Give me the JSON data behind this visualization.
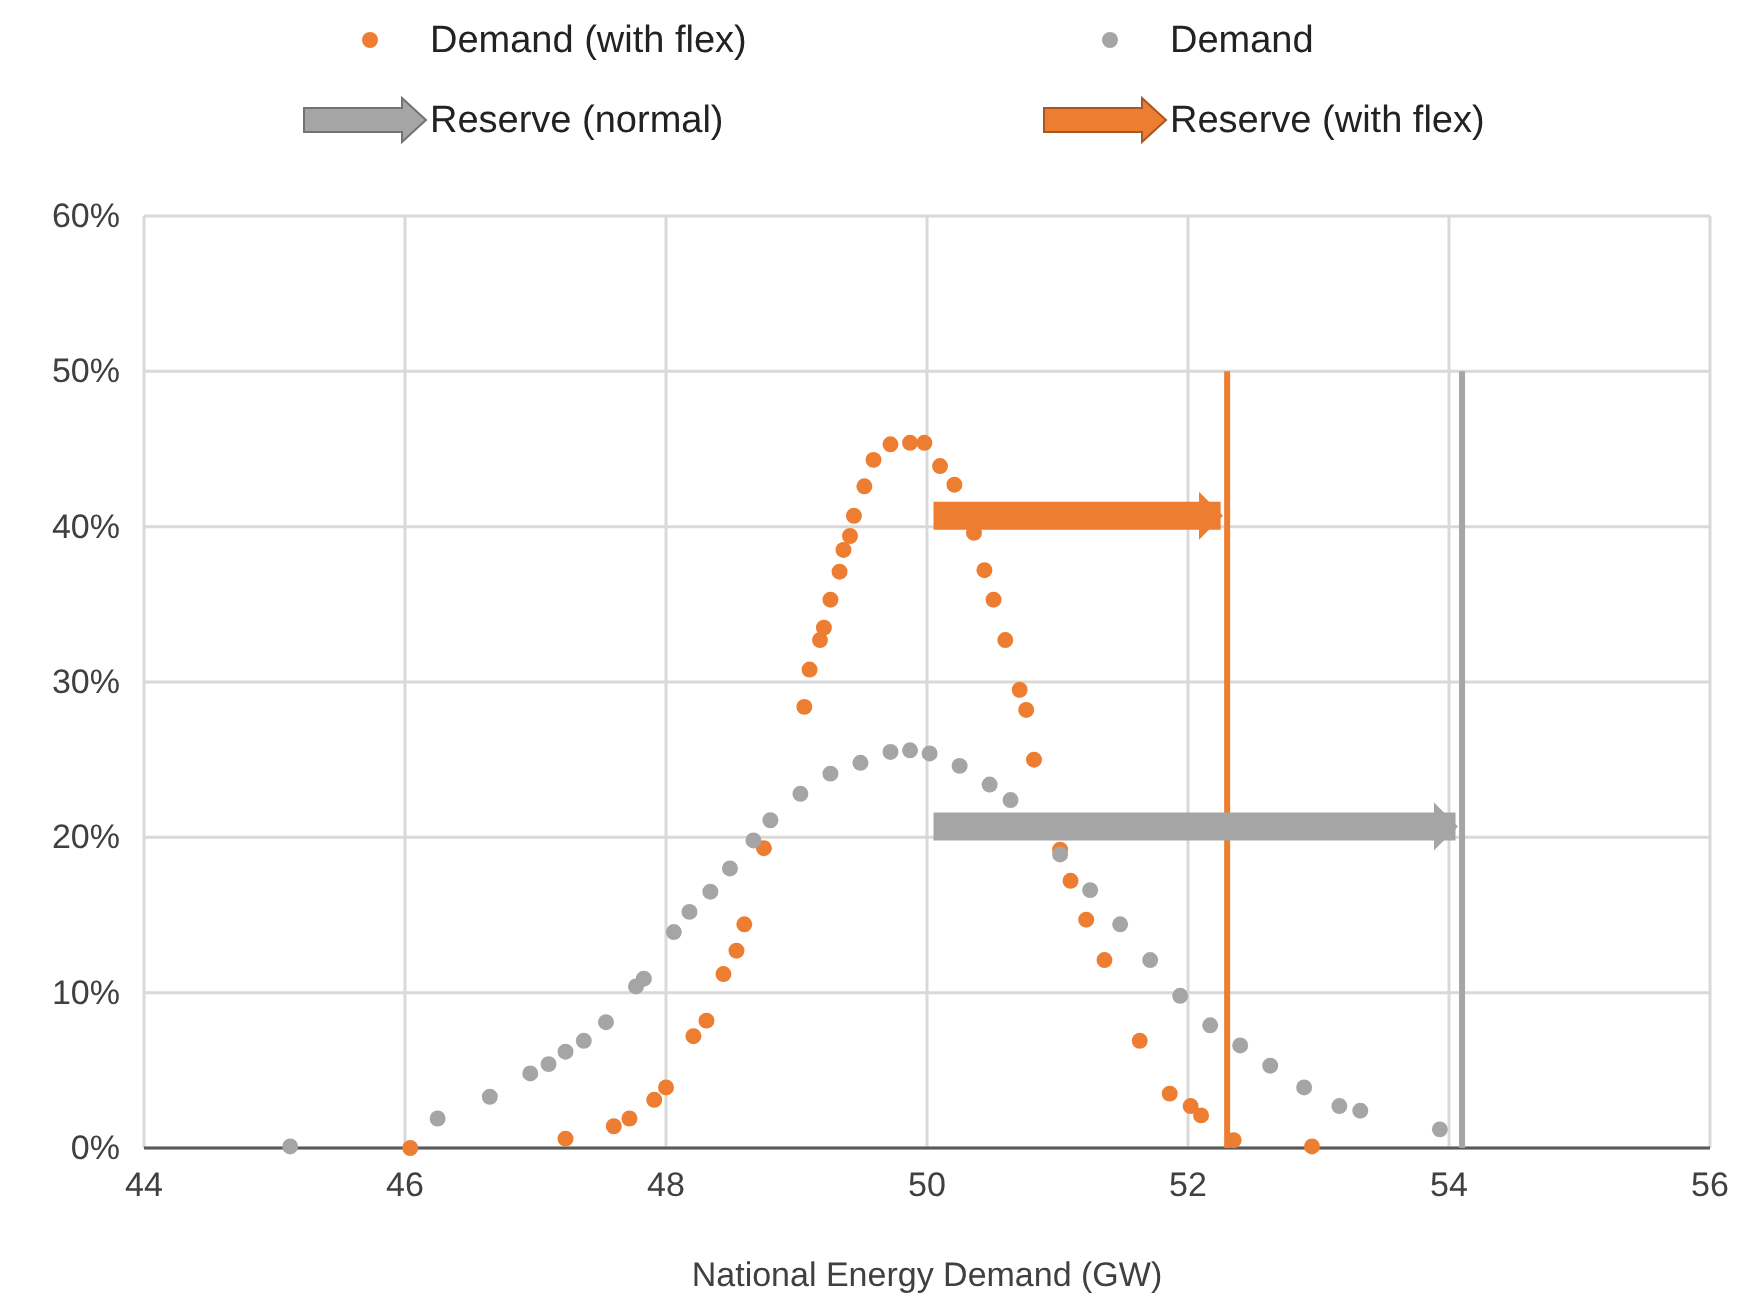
{
  "chart_data": {
    "type": "scatter",
    "xlabel": "National Energy Demand (GW)",
    "xlim": [
      44,
      56
    ],
    "xticks": [
      44,
      46,
      48,
      50,
      52,
      54,
      56
    ],
    "ylim": [
      0,
      60
    ],
    "yticks": [
      {
        "value": 0,
        "label": "0%"
      },
      {
        "value": 10,
        "label": "10%"
      },
      {
        "value": 20,
        "label": "20%"
      },
      {
        "value": 30,
        "label": "30%"
      },
      {
        "value": 40,
        "label": "40%"
      },
      {
        "value": 50,
        "label": "50%"
      },
      {
        "value": 60,
        "label": "60%"
      }
    ],
    "grid": true,
    "legend": "top",
    "series": [
      {
        "name": "Demand (with flex)",
        "color": "#ed7d31",
        "marker": "circle",
        "x": [
          46.04,
          47.23,
          47.6,
          47.72,
          47.91,
          48.0,
          48.21,
          48.31,
          48.44,
          48.54,
          48.6,
          48.75,
          49.06,
          49.1,
          49.18,
          49.21,
          49.26,
          49.33,
          49.36,
          49.41,
          49.44,
          49.52,
          49.59,
          49.72,
          49.87,
          49.98,
          50.1,
          50.21,
          50.36,
          50.44,
          50.51,
          50.6,
          50.71,
          50.76,
          50.82,
          51.02,
          51.1,
          51.22,
          51.36,
          51.63,
          51.86,
          52.02,
          52.1,
          52.35,
          52.95
        ],
        "values": [
          0,
          0.6,
          1.4,
          1.9,
          3.1,
          3.9,
          7.2,
          8.2,
          11.2,
          12.7,
          14.4,
          19.3,
          28.4,
          30.8,
          32.7,
          33.5,
          35.3,
          37.1,
          38.5,
          39.4,
          40.7,
          42.6,
          44.3,
          45.3,
          45.4,
          45.4,
          43.9,
          42.7,
          39.6,
          37.2,
          35.3,
          32.7,
          29.5,
          28.2,
          25.0,
          19.2,
          17.2,
          14.7,
          12.1,
          6.9,
          3.5,
          2.7,
          2.1,
          0.5,
          0.1
        ]
      },
      {
        "name": "Demand",
        "color": "#a5a5a5",
        "marker": "circle",
        "x": [
          45.12,
          46.25,
          46.65,
          46.96,
          47.1,
          47.23,
          47.37,
          47.54,
          47.77,
          47.83,
          48.06,
          48.18,
          48.34,
          48.49,
          48.67,
          48.8,
          49.03,
          49.26,
          49.49,
          49.72,
          49.87,
          50.02,
          50.25,
          50.48,
          50.64,
          51.02,
          51.25,
          51.48,
          51.71,
          51.94,
          52.17,
          52.4,
          52.63,
          52.89,
          53.16,
          53.32,
          53.93
        ],
        "values": [
          0.1,
          1.9,
          3.3,
          4.8,
          5.4,
          6.2,
          6.9,
          8.1,
          10.4,
          10.9,
          13.9,
          15.2,
          16.5,
          18.0,
          19.8,
          21.1,
          22.8,
          24.1,
          24.8,
          25.5,
          25.6,
          25.4,
          24.6,
          23.4,
          22.4,
          18.9,
          16.6,
          14.4,
          12.1,
          9.8,
          7.9,
          6.6,
          5.3,
          3.9,
          2.7,
          2.4,
          1.2
        ]
      },
      {
        "name": "Reserve (normal)",
        "type": "line",
        "marker": "none",
        "color": "#a5a5a5",
        "x": [
          50.05,
          54.05
        ],
        "values": [
          20.7,
          20.7
        ]
      },
      {
        "name": "Reserve (with flex)",
        "type": "line",
        "marker": "none",
        "color": "#ed7d31",
        "x": [
          50.05,
          52.25
        ],
        "values": [
          40.7,
          40.7
        ]
      },
      {
        "type": "line",
        "color": "#ed7d31",
        "marker": "none",
        "x": [
          52.3,
          52.3
        ],
        "values": [
          0,
          50
        ]
      },
      {
        "type": "line",
        "color": "#a5a5a5",
        "marker": "none",
        "x": [
          54.1,
          54.1
        ],
        "values": [
          0,
          50
        ]
      }
    ]
  }
}
